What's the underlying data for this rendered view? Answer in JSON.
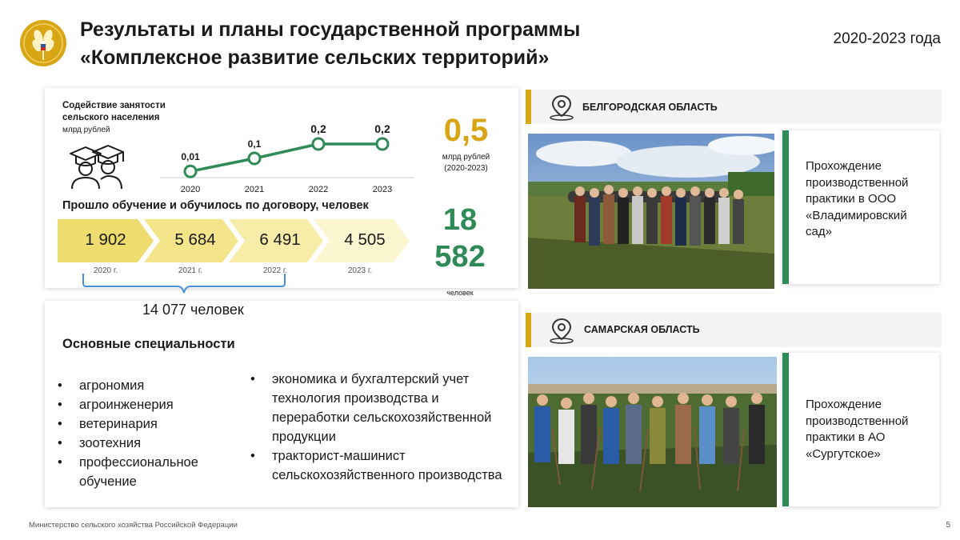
{
  "header": {
    "title_line1": "Результаты и планы государственной программы",
    "title_line2": "«Комплексное развитие сельских территорий»",
    "years": "2020-2023 года",
    "logo_icon": "wheat-ear-emblem-icon"
  },
  "employment": {
    "label_line1": "Содействие занятости",
    "label_line2": "сельского населения",
    "unit": "млрд рублей",
    "icon": "graduates-icon",
    "total_value": "0,5",
    "total_unit": "млрд рублей",
    "total_period": "(2020-2023)"
  },
  "chart_data": {
    "type": "line",
    "categories": [
      "2020",
      "2021",
      "2022",
      "2023"
    ],
    "values": [
      0.01,
      0.1,
      0.2,
      0.2
    ],
    "value_labels": [
      "0,01",
      "0,1",
      "0,2",
      "0,2"
    ],
    "color": "#2e8b57"
  },
  "training": {
    "title": "Прошло обучение и обучилось по договору, человек",
    "steps": [
      {
        "value": "1 902",
        "year": "2020 г."
      },
      {
        "value": "5 684",
        "year": "2021 г."
      },
      {
        "value": "6 491",
        "year": "2022 г."
      },
      {
        "value": "4 505",
        "year": "2023 г."
      }
    ],
    "bracket_total": "14 077 человек",
    "total_line1": "18",
    "total_line2": "582",
    "total_unit": "человек"
  },
  "specialties": {
    "title": "Основные специальности",
    "left": [
      "агрономия",
      "агроинженерия",
      "ветеринария",
      "зоотехния",
      "профессиональное обучение"
    ],
    "right": [
      "экономика и бухгалтерский учет технология производства и переработки сельскохозяйственной продукции",
      "тракторист-машинист сельскохозяйственного производства"
    ]
  },
  "regions": [
    {
      "name": "БЕЛГОРОДСКАЯ ОБЛАСТЬ",
      "icon": "location-pin-icon",
      "caption": "Прохождение производственной практики в ООО «Владимировский сад»"
    },
    {
      "name": "САМАРСКАЯ ОБЛАСТЬ",
      "icon": "location-pin-icon",
      "caption": "Прохождение производственной практики в АО «Сургутское»"
    }
  ],
  "footer": {
    "ministry": "Министерство сельского хозяйства Российской Федерации",
    "page": "5"
  },
  "colors": {
    "gold": "#d8a514",
    "green": "#2e8b57",
    "chevron_light": "#fbf3c8",
    "chevron_mid": "#f7ea9a",
    "chevron_dark": "#efdc6e"
  }
}
